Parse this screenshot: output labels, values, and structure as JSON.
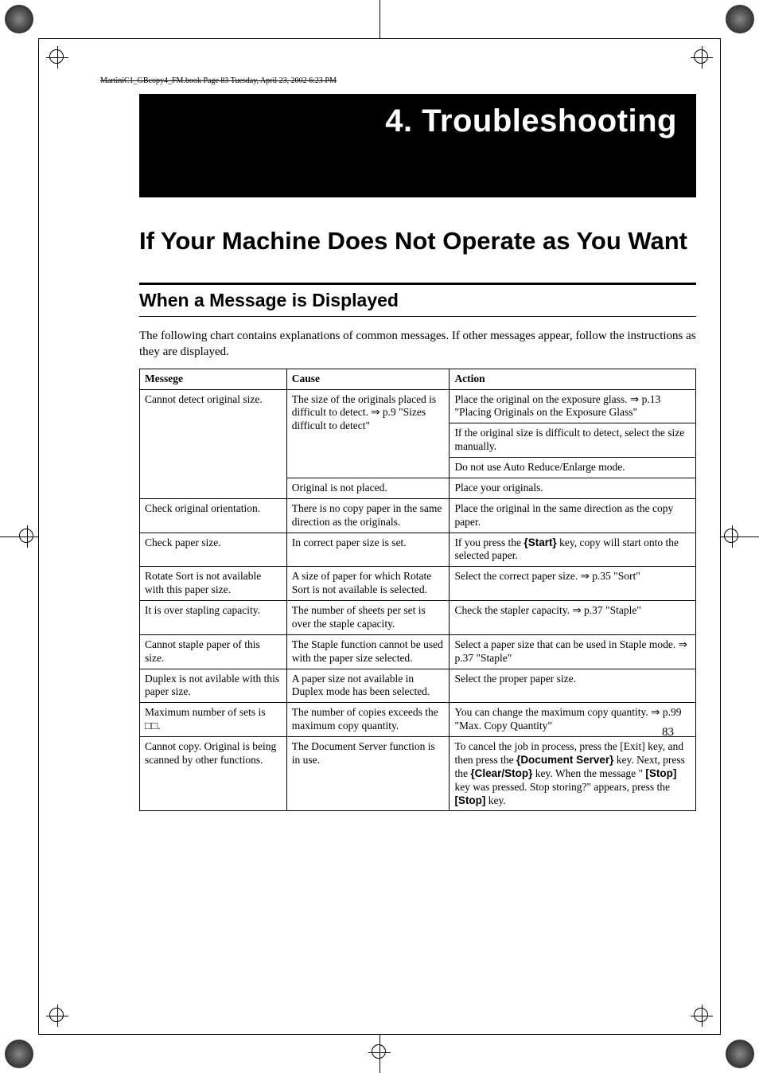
{
  "running_head": "MartiniC1_GBcopy4_FM.book  Page 83  Tuesday, April 23, 2002  6:23 PM",
  "chapter_title": "4. Troubleshooting",
  "h1": "If Your Machine Does Not Operate as You Want",
  "h2": "When a Message is Displayed",
  "intro": "The following chart contains explanations of common messages. If other messages appear, follow the instructions as they are displayed.",
  "table": {
    "headers": [
      "Messege",
      "Cause",
      "Action"
    ],
    "groups": [
      {
        "msg": "Cannot detect original size.",
        "msg_rowspan": 4,
        "rows": [
          {
            "cause": "The size of the originals placed is difficult to detect. ⇒ p.9 \"Sizes difficult to detect\"",
            "cause_rowspan": 3,
            "action": "Place the original on the exposure glass. ⇒ p.13 \"Placing Originals on the Exposure Glass\""
          },
          {
            "action": "If the original size is difficult to detect, select the size manually."
          },
          {
            "action": "Do not use Auto Reduce/Enlarge mode."
          },
          {
            "cause": "Original is not placed.",
            "action": "Place your originals."
          }
        ]
      },
      {
        "msg": "Check original orientation.",
        "rows": [
          {
            "cause": "There is no copy paper in the same direction as the originals.",
            "action": "Place the original in the same direction as the copy paper."
          }
        ]
      },
      {
        "msg": "Check paper size.",
        "rows": [
          {
            "cause": "In correct paper size is set.",
            "action_html": "If you press the <span class='bracket'>{</span><span class='key'>Start</span><span class='bracket'>}</span> key, copy will start onto the selected paper."
          }
        ]
      },
      {
        "msg": "Rotate Sort is not available with this paper size.",
        "rows": [
          {
            "cause": "A size of paper for which Rotate Sort is not available is selected.",
            "action": "Select the correct paper size. ⇒ p.35 \"Sort\""
          }
        ]
      },
      {
        "msg": "It is over stapling capacity.",
        "rows": [
          {
            "cause": "The number of sheets per set is over the staple capacity.",
            "action": "Check the stapler capacity. ⇒ p.37 \"Staple\""
          }
        ]
      },
      {
        "msg": "Cannot staple paper of this size.",
        "rows": [
          {
            "cause": "The Staple function cannot be used with the paper size selected.",
            "action": "Select a paper size that can be used in Staple mode. ⇒ p.37 \"Staple\""
          }
        ]
      },
      {
        "msg": "Duplex is not avilable with this paper size.",
        "rows": [
          {
            "cause": "A paper size not available in Duplex mode has been selected.",
            "action": "Select the proper paper size."
          }
        ]
      },
      {
        "msg": "Maximum number of sets is □□.",
        "rows": [
          {
            "cause": "The number of copies exceeds the maximum copy quantity.",
            "action": "You can change the maximum copy quantity. ⇒ p.99 \"Max. Copy Quantity\""
          }
        ]
      },
      {
        "msg": "Cannot copy. Original is being scanned by other functions.",
        "rows": [
          {
            "cause": "The Document Server function is in use.",
            "action_html": "To cancel the job in process, press the [Exit] key, and then press the <span class='bracket'>{</span><span class='key'>Document Server</span><span class='bracket'>}</span> key. Next, press the <span class='bracket'>{</span><span class='key'>Clear/Stop</span><span class='bracket'>}</span> key. When the message \" <span class='key'>[Stop]</span> key was pressed. Stop storing?\" appears, press the <span class='key'>[Stop]</span> key."
          }
        ]
      }
    ]
  },
  "page_number": "83",
  "colors": {
    "band_bg": "#000000",
    "band_fg": "#ffffff",
    "text": "#000000",
    "page_bg": "#ffffff"
  }
}
